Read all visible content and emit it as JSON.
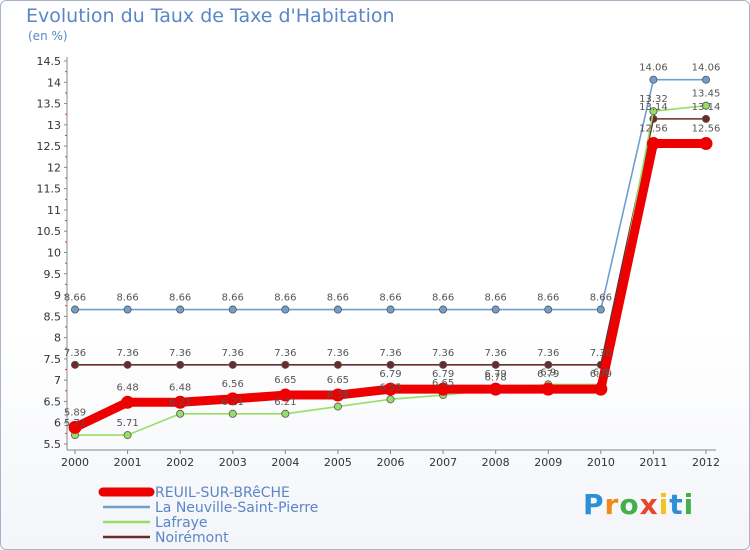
{
  "chart_data": {
    "type": "line",
    "title": "Evolution du Taux de Taxe d'Habitation",
    "ylabel": "(en %)",
    "categories": [
      "2000",
      "2001",
      "2002",
      "2003",
      "2004",
      "2005",
      "2006",
      "2007",
      "2008",
      "2009",
      "2010",
      "2011",
      "2012"
    ],
    "ylim": [
      5.5,
      14.5
    ],
    "yticks": [
      "5.5",
      "6",
      "6.5",
      "7",
      "7.5",
      "8",
      "8.5",
      "9",
      "9.5",
      "10",
      "10.5",
      "11",
      "11.5",
      "12",
      "12.5",
      "13",
      "13.5",
      "14",
      "14.5"
    ],
    "series": [
      {
        "name": "REUIL-SUR-BRêCHE",
        "color": "#ee0000",
        "bold": true,
        "values": [
          5.89,
          6.48,
          6.48,
          6.56,
          6.65,
          6.65,
          6.79,
          6.79,
          6.79,
          6.79,
          6.79,
          12.56,
          12.56
        ],
        "labels": [
          "5.89",
          "6.48",
          "6.48",
          "6.56",
          "6.65",
          "6.65",
          "6.79",
          "6.79",
          "6.79",
          "6.79",
          "6.79",
          "12.56",
          "12.56"
        ]
      },
      {
        "name": "La Neuville-Saint-Pierre",
        "color": "#6f9fcf",
        "bold": false,
        "values": [
          8.66,
          8.66,
          8.66,
          8.66,
          8.66,
          8.66,
          8.66,
          8.66,
          8.66,
          8.66,
          8.66,
          14.06,
          14.06
        ],
        "labels": [
          "8.66",
          "8.66",
          "8.66",
          "8.66",
          "8.66",
          "8.66",
          "8.66",
          "8.66",
          "8.66",
          "8.66",
          "8.66",
          "14.06",
          "14.06"
        ]
      },
      {
        "name": "Lafraye",
        "color": "#99dd66",
        "bold": false,
        "values": [
          5.71,
          5.71,
          6.21,
          6.21,
          6.21,
          6.38,
          6.55,
          6.65,
          6.78,
          6.9,
          6.9,
          13.32,
          13.45
        ],
        "labels": [
          "5.71",
          "5.71",
          "6.21",
          "6.21",
          "6.21",
          "6.38",
          "6.55",
          "6.65",
          "6.78",
          "6.9",
          "6.9",
          "13.32",
          "13.45"
        ]
      },
      {
        "name": "Noirémont",
        "color": "#6b2b2b",
        "bold": false,
        "values": [
          7.36,
          7.36,
          7.36,
          7.36,
          7.36,
          7.36,
          7.36,
          7.36,
          7.36,
          7.36,
          7.36,
          13.14,
          13.14
        ],
        "labels": [
          "7.36",
          "7.36",
          "7.36",
          "7.36",
          "7.36",
          "7.36",
          "7.36",
          "7.36",
          "7.36",
          "7.36",
          "7.36",
          "13.14",
          "13.14"
        ]
      }
    ]
  },
  "branding": {
    "logo_letters": [
      "P",
      "r",
      "o",
      "x",
      "i",
      "t",
      "i"
    ],
    "logo_colors": [
      "#2e8fd6",
      "#f08a1a",
      "#44b04a",
      "#e8452b",
      "#f3c21c",
      "#2e8fd6",
      "#44b04a"
    ]
  }
}
